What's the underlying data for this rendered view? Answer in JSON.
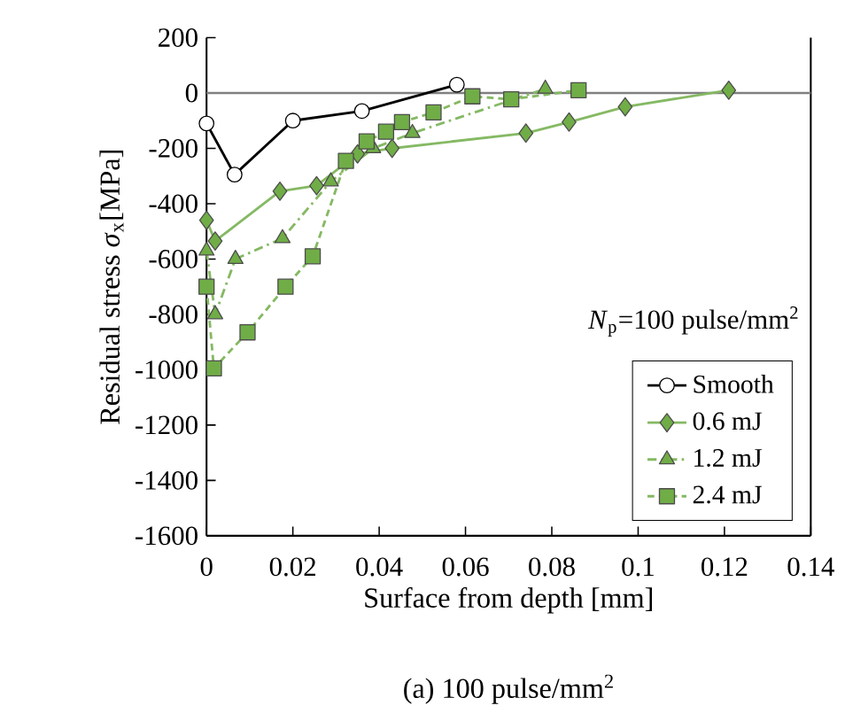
{
  "chart_data": {
    "type": "line",
    "title": "(a) 100 pulse/mm$^{2}$",
    "xlabel": "Surface from depth [mm]",
    "ylabel": "Residual stress *σ*$_{x}$[MPa]",
    "annotations": [
      "*N*$_{p}$=100 pulse/mm$^{2}$"
    ],
    "xlim": [
      0,
      0.14
    ],
    "ylim": [
      -1600,
      200
    ],
    "xticks": [
      0,
      0.02,
      0.04,
      0.06,
      0.08,
      0.1,
      0.12,
      0.14
    ],
    "yticks": [
      -1600,
      -1400,
      -1200,
      -1000,
      -800,
      -600,
      -400,
      -200,
      0,
      200
    ],
    "grid": false,
    "legend": "bottom right",
    "ref_lines": [
      {
        "axis": "y",
        "value": 0,
        "color": "#808080"
      }
    ],
    "series": [
      {
        "name": "Smooth",
        "color": "#000000",
        "marker": "circle",
        "line_style": "solid",
        "x": [
          0,
          0.0065,
          0.02,
          0.036,
          0.058
        ],
        "values": [
          -110,
          -295,
          -100,
          -65,
          30
        ]
      },
      {
        "name": "0.6 mJ",
        "color": "#70ad47",
        "marker": "diamond",
        "line_style": "solid",
        "x": [
          0,
          0.002,
          0.017,
          0.0255,
          0.035,
          0.043,
          0.074,
          0.084,
          0.097,
          0.121
        ],
        "values": [
          -460,
          -535,
          -355,
          -335,
          -220,
          -200,
          -145,
          -105,
          -50,
          10
        ]
      },
      {
        "name": "1.2 mJ",
        "color": "#70ad47",
        "marker": "triangle",
        "line_style": "dashdot",
        "x": [
          0,
          0.002,
          0.0067,
          0.0176,
          0.0288,
          0.0386,
          0.0477,
          0.0785
        ],
        "values": [
          -570,
          -800,
          -600,
          -525,
          -320,
          -200,
          -145,
          15
        ]
      },
      {
        "name": "2.4 mJ",
        "color": "#70ad47",
        "marker": "square",
        "line_style": "dashed",
        "x": [
          0,
          0.0017,
          0.0095,
          0.0183,
          0.0246,
          0.0323,
          0.0371,
          0.0416,
          0.0453,
          0.0526,
          0.0616,
          0.0706,
          0.0862
        ],
        "values": [
          -700,
          -995,
          -865,
          -700,
          -590,
          -245,
          -175,
          -140,
          -105,
          -70,
          -12,
          -23,
          10
        ]
      }
    ]
  }
}
